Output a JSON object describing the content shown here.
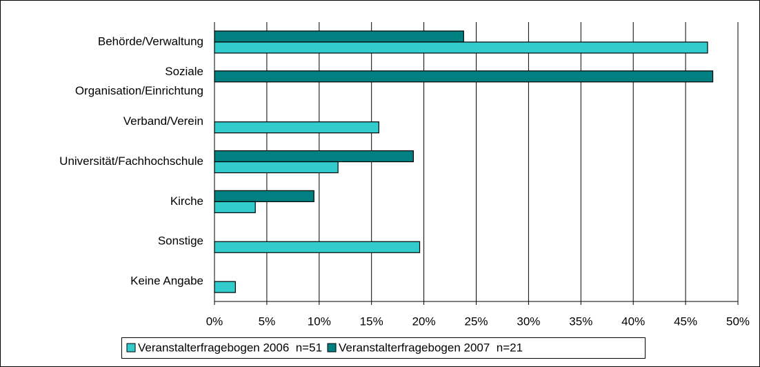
{
  "chart_data": {
    "type": "hbar",
    "categories": [
      "Behörde/Verwaltung",
      "Soziale Organisation/Einrichtung",
      "Verband/Verein",
      "Universität/Fachhochschule",
      "Kirche",
      "Sonstige",
      "Keine Angabe"
    ],
    "series": [
      {
        "name": "Veranstalterfragebogen 2006  n=51",
        "color": "#33cccc",
        "values": [
          47.1,
          null,
          15.7,
          11.8,
          3.9,
          19.6,
          2.0
        ]
      },
      {
        "name": "Veranstalterfragebogen 2007  n=21",
        "color": "#008080",
        "values": [
          23.8,
          47.6,
          null,
          19.0,
          9.5,
          null,
          null
        ]
      }
    ],
    "xlim": [
      0,
      50
    ],
    "xticks": [
      {
        "value": 0,
        "label": "0%"
      },
      {
        "value": 5,
        "label": "5%"
      },
      {
        "value": 10,
        "label": "10%"
      },
      {
        "value": 15,
        "label": "15%"
      },
      {
        "value": 20,
        "label": "20%"
      },
      {
        "value": 25,
        "label": "25%"
      },
      {
        "value": 30,
        "label": "30%"
      },
      {
        "value": 35,
        "label": "35%"
      },
      {
        "value": 40,
        "label": "40%"
      },
      {
        "value": 45,
        "label": "45%"
      },
      {
        "value": 50,
        "label": "50%"
      }
    ],
    "grid": true,
    "legend": "bottom"
  }
}
